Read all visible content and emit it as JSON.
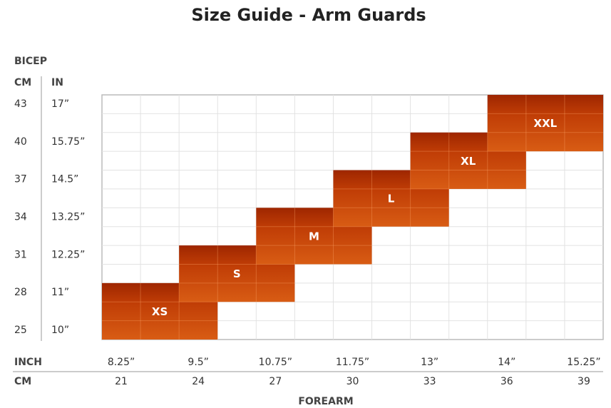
{
  "title": "Size Guide - Arm Guards",
  "y_axis": {
    "title": "BICEP",
    "unit_headers": [
      "CM",
      "IN"
    ],
    "rows": [
      {
        "cm": "43",
        "in": "17”"
      },
      {
        "cm": "40",
        "in": "15.75”"
      },
      {
        "cm": "37",
        "in": "14.5”"
      },
      {
        "cm": "34",
        "in": "13.25”"
      },
      {
        "cm": "31",
        "in": "12.25”"
      },
      {
        "cm": "28",
        "in": "11”"
      },
      {
        "cm": "25",
        "in": "10”"
      }
    ]
  },
  "x_axis": {
    "title": "FOREARM",
    "unit_headers": [
      "INCH",
      "CM"
    ],
    "columns": [
      {
        "inch": "8.25”",
        "cm": "21"
      },
      {
        "inch": "9.5”",
        "cm": "24"
      },
      {
        "inch": "10.75”",
        "cm": "27"
      },
      {
        "inch": "11.75”",
        "cm": "30"
      },
      {
        "inch": "13”",
        "cm": "33"
      },
      {
        "inch": "14”",
        "cm": "36"
      },
      {
        "inch": "15.25”",
        "cm": "39"
      }
    ]
  },
  "sizes": [
    "XS",
    "S",
    "M",
    "L",
    "XL",
    "XXL"
  ]
}
